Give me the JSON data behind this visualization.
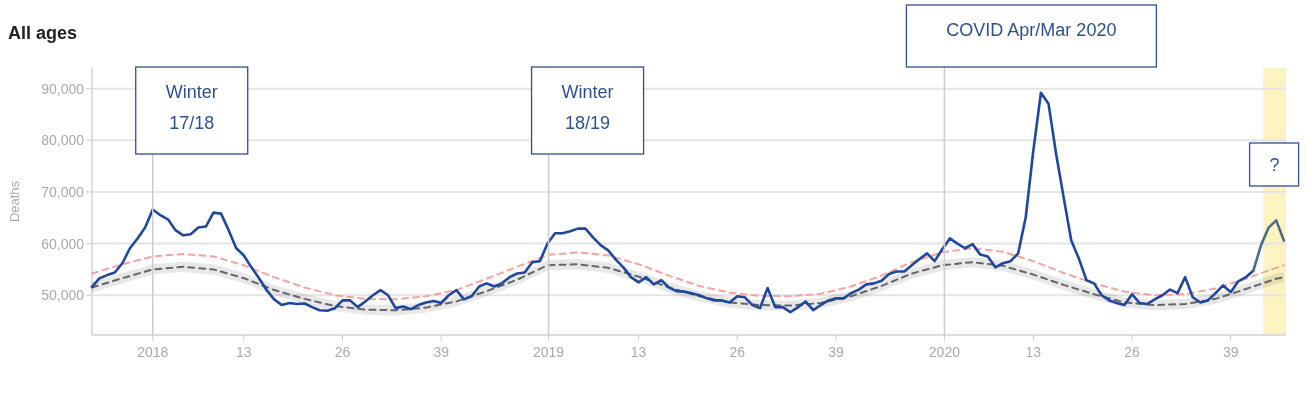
{
  "chart_data": {
    "type": "line",
    "title": "All ages",
    "ylabel": "Deaths",
    "xlim": [
      "2017-11-06",
      "2020-11-11"
    ],
    "ylim": [
      42300,
      94000
    ],
    "xticks": [
      {
        "value": "2018-01-01",
        "label": "2018"
      },
      {
        "value": "2018-03-26",
        "label": "13"
      },
      {
        "value": "2018-06-25",
        "label": "26"
      },
      {
        "value": "2018-09-24",
        "label": "39"
      },
      {
        "value": "2019-01-01",
        "label": "2019"
      },
      {
        "value": "2019-03-25",
        "label": "13"
      },
      {
        "value": "2019-06-24",
        "label": "26"
      },
      {
        "value": "2019-09-23",
        "label": "39"
      },
      {
        "value": "2020-01-01",
        "label": "2020"
      },
      {
        "value": "2020-03-23",
        "label": "13"
      },
      {
        "value": "2020-06-22",
        "label": "26"
      },
      {
        "value": "2020-09-21",
        "label": "39"
      }
    ],
    "yticks": [
      {
        "value": 50000,
        "label": "50,000"
      },
      {
        "value": 60000,
        "label": "60,000"
      },
      {
        "value": 70000,
        "label": "70,000"
      },
      {
        "value": 80000,
        "label": "80,000"
      },
      {
        "value": 90000,
        "label": "90,000"
      }
    ],
    "grid": "y",
    "ref_lines": [
      {
        "axis": "x",
        "value": "2018-01-01",
        "label": "Winter 17/18",
        "color": "#cccccc"
      },
      {
        "axis": "x",
        "value": "2019-01-01",
        "label": "Winter 18/19",
        "color": "#cccccc"
      },
      {
        "axis": "x",
        "value": "2020-01-01",
        "label": "COVID Apr/Mar 2020",
        "color": "#cccccc"
      }
    ],
    "bands": [
      {
        "axis": "x",
        "from": "2020-10-21",
        "to": "2020-11-11",
        "label": "?",
        "color": "#fdf3c0"
      }
    ],
    "x": [
      "2017-11-06",
      "2017-11-13",
      "2017-11-20",
      "2017-11-27",
      "2017-12-04",
      "2017-12-11",
      "2017-12-18",
      "2017-12-25",
      "2018-01-01",
      "2018-01-08",
      "2018-01-15",
      "2018-01-22",
      "2018-01-29",
      "2018-02-05",
      "2018-02-12",
      "2018-02-19",
      "2018-02-26",
      "2018-03-05",
      "2018-03-12",
      "2018-03-19",
      "2018-03-26",
      "2018-04-02",
      "2018-04-09",
      "2018-04-16",
      "2018-04-23",
      "2018-04-30",
      "2018-05-07",
      "2018-05-14",
      "2018-05-21",
      "2018-05-28",
      "2018-06-04",
      "2018-06-11",
      "2018-06-18",
      "2018-06-25",
      "2018-07-02",
      "2018-07-09",
      "2018-07-16",
      "2018-07-23",
      "2018-07-30",
      "2018-08-06",
      "2018-08-13",
      "2018-08-20",
      "2018-08-27",
      "2018-09-03",
      "2018-09-10",
      "2018-09-17",
      "2018-09-24",
      "2018-10-01",
      "2018-10-08",
      "2018-10-15",
      "2018-10-22",
      "2018-10-29",
      "2018-11-05",
      "2018-11-12",
      "2018-11-19",
      "2018-11-26",
      "2018-12-03",
      "2018-12-10",
      "2018-12-17",
      "2018-12-24",
      "2018-12-31",
      "2019-01-07",
      "2019-01-14",
      "2019-01-21",
      "2019-01-28",
      "2019-02-04",
      "2019-02-11",
      "2019-02-18",
      "2019-02-25",
      "2019-03-04",
      "2019-03-11",
      "2019-03-18",
      "2019-03-25",
      "2019-04-01",
      "2019-04-08",
      "2019-04-15",
      "2019-04-22",
      "2019-04-29",
      "2019-05-06",
      "2019-05-13",
      "2019-05-20",
      "2019-05-27",
      "2019-06-03",
      "2019-06-10",
      "2019-06-17",
      "2019-06-24",
      "2019-07-01",
      "2019-07-08",
      "2019-07-15",
      "2019-07-22",
      "2019-07-29",
      "2019-08-05",
      "2019-08-12",
      "2019-08-19",
      "2019-08-26",
      "2019-09-02",
      "2019-09-09",
      "2019-09-16",
      "2019-09-23",
      "2019-09-30",
      "2019-10-07",
      "2019-10-14",
      "2019-10-21",
      "2019-10-28",
      "2019-11-04",
      "2019-11-11",
      "2019-11-18",
      "2019-11-25",
      "2019-12-02",
      "2019-12-09",
      "2019-12-16",
      "2019-12-23",
      "2019-12-30",
      "2020-01-06",
      "2020-01-13",
      "2020-01-20",
      "2020-01-27",
      "2020-02-03",
      "2020-02-10",
      "2020-02-17",
      "2020-02-24",
      "2020-03-02",
      "2020-03-09",
      "2020-03-16",
      "2020-03-23",
      "2020-03-30",
      "2020-04-06",
      "2020-04-13",
      "2020-04-20",
      "2020-04-27",
      "2020-05-04",
      "2020-05-11",
      "2020-05-18",
      "2020-05-25",
      "2020-06-01",
      "2020-06-08",
      "2020-06-15",
      "2020-06-22",
      "2020-06-29",
      "2020-07-06",
      "2020-07-13",
      "2020-07-20",
      "2020-07-27",
      "2020-08-03",
      "2020-08-10",
      "2020-08-17",
      "2020-08-24",
      "2020-08-31",
      "2020-09-07",
      "2020-09-14",
      "2020-09-21",
      "2020-09-28",
      "2020-10-05",
      "2020-10-12"
    ],
    "series": [
      {
        "color": "#f4a3a3",
        "line_style": "dashed",
        "x": [
          "2017-11-06",
          "2017-12-04",
          "2018-01-01",
          "2018-01-29",
          "2018-02-26",
          "2018-03-26",
          "2018-04-23",
          "2018-05-21",
          "2018-06-18",
          "2018-07-16",
          "2018-08-13",
          "2018-09-10",
          "2018-10-08",
          "2018-11-05",
          "2018-12-03",
          "2018-12-31",
          "2019-01-28",
          "2019-02-25",
          "2019-03-25",
          "2019-04-22",
          "2019-05-20",
          "2019-06-17",
          "2019-07-15",
          "2019-08-12",
          "2019-09-09",
          "2019-10-07",
          "2019-11-04",
          "2019-12-02",
          "2019-12-30",
          "2020-01-27",
          "2020-02-24",
          "2020-03-23",
          "2020-04-20",
          "2020-05-18",
          "2020-06-15",
          "2020-07-13",
          "2020-08-10",
          "2020-09-07",
          "2020-10-05",
          "2020-11-02",
          "2020-11-09"
        ],
        "values": [
          54200,
          56000,
          57500,
          58000,
          57500,
          55800,
          53500,
          51500,
          50000,
          49300,
          49200,
          49800,
          51000,
          53200,
          55500,
          57800,
          58300,
          57700,
          56000,
          53800,
          51800,
          50500,
          49900,
          49800,
          50300,
          51700,
          53800,
          56400,
          58300,
          59100,
          58400,
          56600,
          54300,
          52300,
          50700,
          50000,
          50200,
          51300,
          53200,
          55300,
          55800
        ]
      },
      {
        "color": "#666666",
        "line_style": "dashed",
        "x": [
          "2017-11-06",
          "2017-12-04",
          "2018-01-01",
          "2018-01-29",
          "2018-02-26",
          "2018-03-26",
          "2018-04-23",
          "2018-05-21",
          "2018-06-18",
          "2018-07-16",
          "2018-08-13",
          "2018-09-10",
          "2018-10-08",
          "2018-11-05",
          "2018-12-03",
          "2018-12-31",
          "2019-01-28",
          "2019-02-25",
          "2019-03-25",
          "2019-04-22",
          "2019-05-20",
          "2019-06-17",
          "2019-07-15",
          "2019-08-12",
          "2019-09-09",
          "2019-10-07",
          "2019-11-04",
          "2019-12-02",
          "2019-12-30",
          "2020-01-27",
          "2020-02-24",
          "2020-03-23",
          "2020-04-20",
          "2020-05-18",
          "2020-06-15",
          "2020-07-13",
          "2020-08-10",
          "2020-09-07",
          "2020-10-05",
          "2020-11-02",
          "2020-11-09"
        ],
        "values": [
          51500,
          53300,
          55000,
          55500,
          55000,
          53300,
          51000,
          49300,
          47900,
          47200,
          47100,
          47600,
          48800,
          50800,
          53000,
          55800,
          56000,
          55300,
          53600,
          51500,
          49800,
          48600,
          48100,
          48000,
          48500,
          49800,
          51800,
          54200,
          55800,
          56400,
          55700,
          54000,
          52000,
          50200,
          48600,
          48100,
          48300,
          49300,
          51200,
          53200,
          53500
        ],
        "lower": [
          50500,
          52300,
          54000,
          54500,
          54000,
          52300,
          50000,
          48300,
          46900,
          46200,
          46100,
          46600,
          47800,
          49800,
          52000,
          54800,
          55000,
          54300,
          52600,
          50500,
          48800,
          47600,
          47100,
          47000,
          47500,
          48800,
          50800,
          53200,
          54800,
          55400,
          54700,
          53000,
          51000,
          49200,
          47600,
          47100,
          47300,
          48300,
          50200,
          52200,
          52500
        ],
        "upper": [
          52500,
          54300,
          56000,
          56500,
          56000,
          54300,
          52000,
          50300,
          48900,
          48200,
          48100,
          48600,
          49800,
          51800,
          54000,
          56800,
          57000,
          56300,
          54600,
          52500,
          50800,
          49600,
          49100,
          49000,
          49500,
          50800,
          52800,
          55200,
          56800,
          57400,
          56700,
          55000,
          53000,
          51200,
          49600,
          49100,
          49300,
          50300,
          52200,
          54200,
          54500
        ]
      },
      {
        "color": "#1f47a0",
        "values": [
          51600,
          53300,
          53900,
          54400,
          56200,
          59100,
          61000,
          63100,
          66600,
          65500,
          64700,
          62600,
          61600,
          61800,
          63100,
          63300,
          66000,
          65800,
          62600,
          59100,
          57700,
          55400,
          53300,
          51000,
          49200,
          48100,
          48500,
          48300,
          48400,
          47700,
          47100,
          47000,
          47500,
          49000,
          49000,
          47700,
          48800,
          50000,
          51000,
          50000,
          47500,
          47800,
          47300,
          48100,
          48600,
          48900,
          48500,
          50000,
          51000,
          49200,
          49800,
          51700,
          52300,
          51700,
          52300,
          53500,
          54200,
          54400,
          56400,
          56600,
          60000,
          62000,
          62000,
          62400,
          62900,
          62900,
          61200,
          59700,
          58700,
          56900,
          55400,
          53500,
          52500,
          53500,
          52100,
          52900,
          51500,
          50800,
          50700,
          50400,
          50000,
          49400,
          49000,
          49000,
          48600,
          49800,
          49600,
          48100,
          47500,
          51400,
          47700,
          47700,
          46700,
          47700,
          48800,
          47100,
          48100,
          49000,
          49400,
          49400,
          50400,
          51100,
          52100,
          52300,
          52800,
          54100,
          54600,
          54600,
          55800,
          57000,
          58100,
          56600,
          58900,
          61000,
          60000,
          59100,
          59900,
          57900,
          57500,
          55400,
          56200,
          56600,
          58100,
          65100,
          78000,
          89200,
          87100,
          77400,
          68900,
          60600,
          57100,
          52900,
          52300,
          50000,
          49000,
          48500,
          48100,
          50200,
          48500,
          48300,
          49200,
          50000,
          51100,
          50400,
          53500,
          49600,
          48600,
          49000,
          50400,
          51900,
          50600,
          52700,
          53500,
          54800
        ]
      },
      {
        "color": "#4f6b8a",
        "x": [
          "2020-10-12",
          "2020-10-19",
          "2020-10-26",
          "2020-11-02",
          "2020-11-09"
        ],
        "values": [
          54800,
          59700,
          63100,
          64500,
          60600
        ]
      }
    ]
  }
}
